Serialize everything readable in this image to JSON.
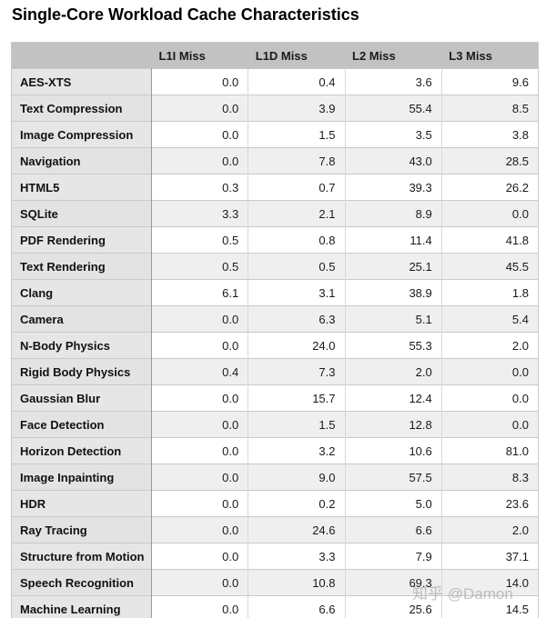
{
  "title": "Single-Core Workload Cache Characteristics",
  "watermark": "知乎 @Damon",
  "chart_data": {
    "type": "table",
    "title": "Single-Core Workload Cache Characteristics",
    "columns": [
      "L1I Miss",
      "L1D Miss",
      "L2 Miss",
      "L3 Miss"
    ],
    "rows": [
      {
        "label": "AES-XTS",
        "values": [
          "0.0",
          "0.4",
          "3.6",
          "9.6"
        ]
      },
      {
        "label": "Text Compression",
        "values": [
          "0.0",
          "3.9",
          "55.4",
          "8.5"
        ]
      },
      {
        "label": "Image Compression",
        "values": [
          "0.0",
          "1.5",
          "3.5",
          "3.8"
        ]
      },
      {
        "label": "Navigation",
        "values": [
          "0.0",
          "7.8",
          "43.0",
          "28.5"
        ]
      },
      {
        "label": "HTML5",
        "values": [
          "0.3",
          "0.7",
          "39.3",
          "26.2"
        ]
      },
      {
        "label": "SQLite",
        "values": [
          "3.3",
          "2.1",
          "8.9",
          "0.0"
        ]
      },
      {
        "label": "PDF Rendering",
        "values": [
          "0.5",
          "0.8",
          "11.4",
          "41.8"
        ]
      },
      {
        "label": "Text Rendering",
        "values": [
          "0.5",
          "0.5",
          "25.1",
          "45.5"
        ]
      },
      {
        "label": "Clang",
        "values": [
          "6.1",
          "3.1",
          "38.9",
          "1.8"
        ]
      },
      {
        "label": "Camera",
        "values": [
          "0.0",
          "6.3",
          "5.1",
          "5.4"
        ]
      },
      {
        "label": "N-Body Physics",
        "values": [
          "0.0",
          "24.0",
          "55.3",
          "2.0"
        ]
      },
      {
        "label": "Rigid Body Physics",
        "values": [
          "0.4",
          "7.3",
          "2.0",
          "0.0"
        ]
      },
      {
        "label": "Gaussian Blur",
        "values": [
          "0.0",
          "15.7",
          "12.4",
          "0.0"
        ]
      },
      {
        "label": "Face Detection",
        "values": [
          "0.0",
          "1.5",
          "12.8",
          "0.0"
        ]
      },
      {
        "label": "Horizon Detection",
        "values": [
          "0.0",
          "3.2",
          "10.6",
          "81.0"
        ]
      },
      {
        "label": "Image Inpainting",
        "values": [
          "0.0",
          "9.0",
          "57.5",
          "8.3"
        ]
      },
      {
        "label": "HDR",
        "values": [
          "0.0",
          "0.2",
          "5.0",
          "23.6"
        ]
      },
      {
        "label": "Ray Tracing",
        "values": [
          "0.0",
          "24.6",
          "6.6",
          "2.0"
        ]
      },
      {
        "label": "Structure from Motion",
        "values": [
          "0.0",
          "3.3",
          "7.9",
          "37.1"
        ]
      },
      {
        "label": "Speech Recognition",
        "values": [
          "0.0",
          "10.8",
          "69.3",
          "14.0"
        ]
      },
      {
        "label": "Machine Learning",
        "values": [
          "0.0",
          "6.6",
          "25.6",
          "14.5"
        ]
      }
    ]
  }
}
